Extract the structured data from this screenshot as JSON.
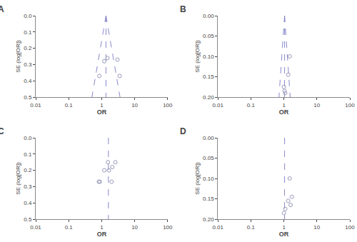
{
  "chart_data": [
    {
      "type": "scatter",
      "title": "A",
      "xlabel": "OR",
      "ylabel": "SE (log[OR])",
      "log": "x",
      "grid": false,
      "xlim": [
        0.01,
        100
      ],
      "xticks": [
        0.01,
        0.1,
        1,
        10,
        100
      ],
      "ylim": [
        0.5,
        0
      ],
      "yticks": [
        {
          "value": 0,
          "label": "0.0"
        },
        0.1,
        0.2,
        0.3,
        0.4,
        0.5
      ],
      "series": [
        {
          "type": "line",
          "x": [
            1.35,
            3.597016
          ],
          "values": [
            0,
            0.5
          ],
          "color": "#8888cc",
          "line_style": "dashed"
        },
        {
          "type": "line",
          "x": [
            1.35,
            0.50667
          ],
          "values": [
            0,
            0.5
          ],
          "color": "#8888cc",
          "line_style": "dashed"
        },
        {
          "type": "line",
          "x": [
            1.35,
            1.35
          ],
          "values": [
            0,
            0.5
          ],
          "color": "#8888cc",
          "line_style": "dashed"
        },
        {
          "type": "scatter",
          "x": [
            0.85,
            1.2,
            1.5,
            3.0,
            3.5
          ],
          "values": [
            0.37,
            0.28,
            0.26,
            0.27,
            0.37
          ],
          "color": "#9999bb",
          "marker": "open_circle"
        }
      ]
    },
    {
      "type": "scatter",
      "title": "B",
      "xlabel": "OR",
      "ylabel": "SE (log[OR])",
      "log": "x",
      "grid": false,
      "xlim": [
        0.01,
        100
      ],
      "xticks": [
        0.01,
        0.1,
        1,
        10,
        100
      ],
      "ylim": [
        0.2,
        0
      ],
      "yticks": [
        {
          "value": 0,
          "label": "0.00"
        },
        0.05,
        {
          "value": 0.1,
          "label": "0.10"
        },
        0.15,
        {
          "value": 0.2,
          "label": "0.20"
        }
      ],
      "series": [
        {
          "type": "line",
          "x": [
            1.05,
            1.553935
          ],
          "values": [
            0,
            0.2
          ],
          "color": "#8888cc",
          "line_style": "dashed"
        },
        {
          "type": "line",
          "x": [
            1.05,
            0.709489
          ],
          "values": [
            0,
            0.2
          ],
          "color": "#8888cc",
          "line_style": "dashed"
        },
        {
          "type": "line",
          "x": [
            1.05,
            1.05
          ],
          "values": [
            0,
            0.2
          ],
          "color": "#8888cc",
          "line_style": "dashed"
        },
        {
          "type": "scatter",
          "x": [
            1.0,
            1.05,
            1.1,
            1.35,
            1.5
          ],
          "values": [
            0.175,
            0.185,
            0.19,
            0.145,
            0.1
          ],
          "color": "#9999bb",
          "marker": "open_circle"
        }
      ]
    },
    {
      "type": "scatter",
      "title": "C",
      "xlabel": "OR",
      "ylabel": "SE (log[OR])",
      "log": "x",
      "grid": false,
      "xlim": [
        0.01,
        100
      ],
      "xticks": [
        0.01,
        0.1,
        1,
        10,
        100
      ],
      "ylim": [
        0.5,
        0
      ],
      "yticks": [
        {
          "value": 0,
          "label": "0.0"
        },
        0.1,
        0.2,
        0.3,
        0.4,
        0.5
      ],
      "series": [
        {
          "type": "line",
          "x": [
            1.6,
            1.6
          ],
          "values": [
            0,
            0.5
          ],
          "color": "#8888cc",
          "line_style": "dashed"
        },
        {
          "type": "scatter",
          "x": [
            0.82,
            0.88,
            1.2,
            1.55,
            1.65,
            2.0,
            2.1,
            2.6
          ],
          "values": [
            0.27,
            0.27,
            0.2,
            0.15,
            0.2,
            0.27,
            0.18,
            0.15
          ],
          "color": "#9999bb",
          "marker": "open_circle"
        }
      ]
    },
    {
      "type": "scatter",
      "title": "D",
      "xlabel": "OR",
      "ylabel": "SE (log[OR])",
      "log": "x",
      "grid": false,
      "xlim": [
        0.01,
        100
      ],
      "xticks": [
        0.01,
        0.1,
        1,
        10,
        100
      ],
      "ylim": [
        0.2,
        0
      ],
      "yticks": [
        {
          "value": 0,
          "label": "0.00"
        },
        0.05,
        {
          "value": 0.1,
          "label": "0.10"
        },
        0.15,
        {
          "value": 0.2,
          "label": "0.20"
        }
      ],
      "series": [
        {
          "type": "line",
          "x": [
            1.05,
            1.05
          ],
          "values": [
            0,
            0.2
          ],
          "color": "#8888cc",
          "line_style": "dashed"
        },
        {
          "type": "scatter",
          "x": [
            1.0,
            1.1,
            1.35,
            1.5,
            1.6,
            1.75
          ],
          "values": [
            0.185,
            0.175,
            0.155,
            0.1,
            0.165,
            0.145
          ],
          "color": "#9999bb",
          "marker": "open_circle"
        }
      ]
    }
  ]
}
